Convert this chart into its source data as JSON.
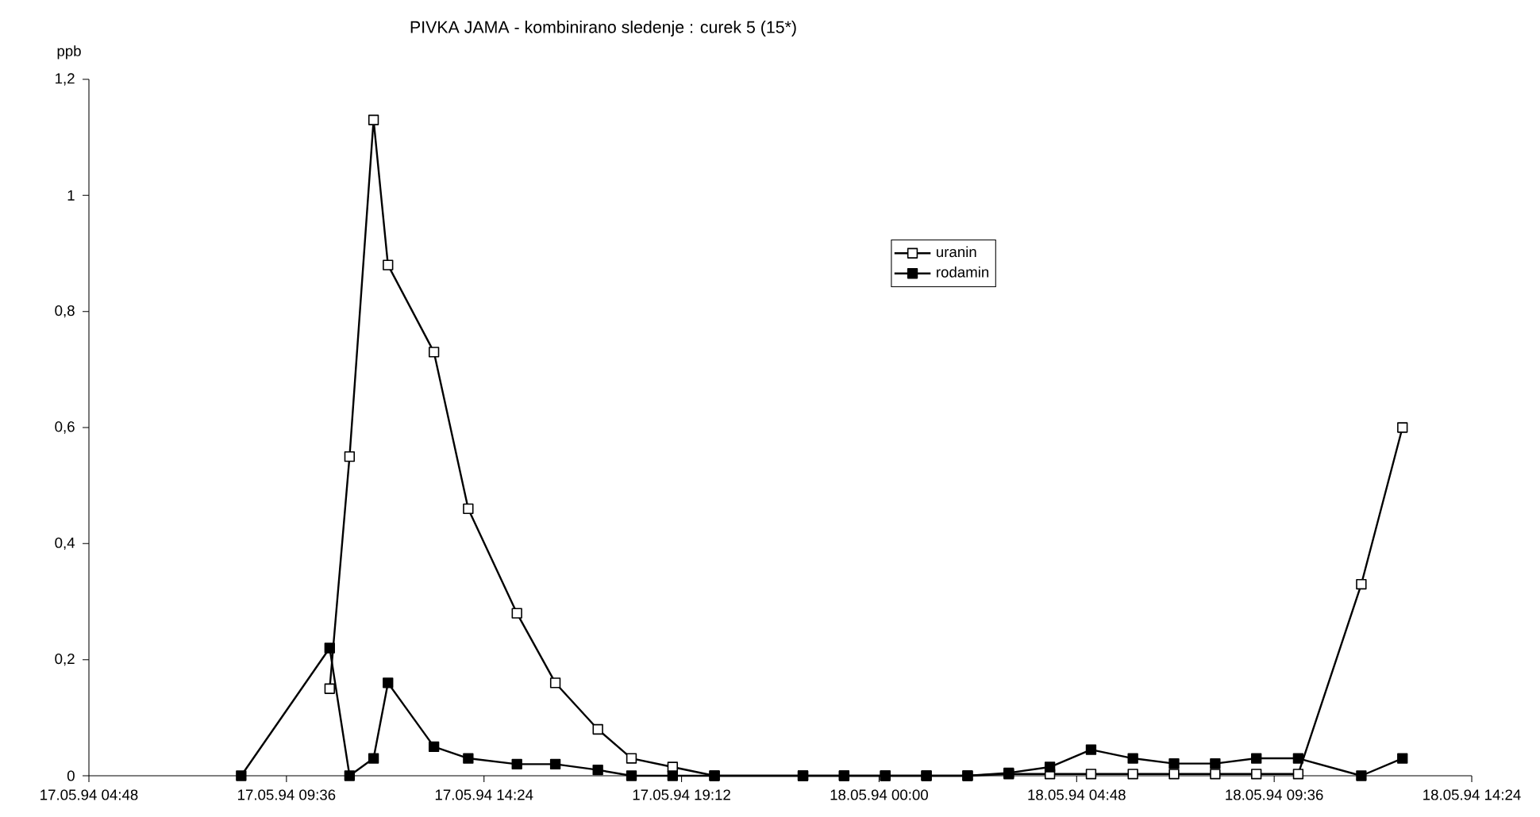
{
  "chart_data": {
    "type": "line",
    "title": "PIVKA JAMA  - kombinirano sledenje : curek  5  (15*)",
    "ylabel": "ppb",
    "xlim": [
      "1994-05-17T04:48",
      "1994-05-18T14:24"
    ],
    "xticks": [
      {
        "value": "1994-05-17T04:48",
        "label": "17.05.94 04:48"
      },
      {
        "value": "1994-05-17T09:36",
        "label": "17.05.94 09:36"
      },
      {
        "value": "1994-05-17T14:24",
        "label": "17.05.94 14:24"
      },
      {
        "value": "1994-05-17T19:12",
        "label": "17.05.94 19:12"
      },
      {
        "value": "1994-05-18T00:00",
        "label": "18.05.94 00:00"
      },
      {
        "value": "1994-05-18T04:48",
        "label": "18.05.94 04:48"
      },
      {
        "value": "1994-05-18T09:36",
        "label": "18.05.94 09:36"
      },
      {
        "value": "1994-05-18T14:24",
        "label": "18.05.94 14:24"
      }
    ],
    "ylim": [
      0,
      1.2
    ],
    "yticks": [
      0,
      {
        "value": 0.2,
        "label": "0,2"
      },
      {
        "value": 0.4,
        "label": "0,4"
      },
      {
        "value": 0.6,
        "label": "0,6"
      },
      {
        "value": 0.8,
        "label": "0,8"
      },
      1,
      {
        "value": 1.2,
        "label": "1,2"
      }
    ],
    "grid": false,
    "legend": "top",
    "marker": "square",
    "line_style": "solid",
    "series": [
      {
        "name": "uranin",
        "color": "#000000",
        "x": [
          "1994-05-17T10:39",
          "1994-05-17T11:08",
          "1994-05-17T11:43",
          "1994-05-17T12:04",
          "1994-05-17T13:11",
          "1994-05-17T14:01",
          "1994-05-17T15:12",
          "1994-05-17T16:08",
          "1994-05-17T17:10",
          "1994-05-17T17:59",
          "1994-05-17T18:59",
          "1994-05-17T20:00",
          "1994-05-17T22:09",
          "1994-05-17T23:09",
          "1994-05-18T00:09",
          "1994-05-18T01:09",
          "1994-05-18T02:09",
          "1994-05-18T03:09",
          "1994-05-18T04:09",
          "1994-05-18T05:09",
          "1994-05-18T06:10",
          "1994-05-18T07:10",
          "1994-05-18T08:10",
          "1994-05-18T09:10",
          "1994-05-18T10:11",
          "1994-05-18T11:43",
          "1994-05-18T12:43"
        ],
        "values": [
          0.15,
          0.55,
          1.13,
          0.88,
          0.73,
          0.46,
          0.28,
          0.16,
          0.08,
          0.03,
          0.015,
          0,
          0,
          0,
          0,
          0,
          0,
          0.003,
          0.003,
          0.003,
          0.003,
          0.003,
          0.003,
          0.003,
          0.003,
          0.33,
          0.6
        ]
      },
      {
        "name": "rodamin",
        "color": "#000000",
        "x": [
          "1994-05-17T08:30",
          "1994-05-17T10:39",
          "1994-05-17T11:08",
          "1994-05-17T11:43",
          "1994-05-17T12:04",
          "1994-05-17T13:11",
          "1994-05-17T14:01",
          "1994-05-17T15:12",
          "1994-05-17T16:08",
          "1994-05-17T17:10",
          "1994-05-17T17:59",
          "1994-05-17T18:59",
          "1994-05-17T20:00",
          "1994-05-17T22:09",
          "1994-05-17T23:09",
          "1994-05-18T00:09",
          "1994-05-18T01:09",
          "1994-05-18T02:09",
          "1994-05-18T03:09",
          "1994-05-18T04:09",
          "1994-05-18T05:09",
          "1994-05-18T06:10",
          "1994-05-18T07:10",
          "1994-05-18T08:10",
          "1994-05-18T09:10",
          "1994-05-18T10:11",
          "1994-05-18T11:43",
          "1994-05-18T12:43"
        ],
        "values": [
          0,
          0.22,
          0,
          0.03,
          0.16,
          0.05,
          0.03,
          0.02,
          0.02,
          0.01,
          0,
          0,
          0,
          0,
          0,
          0,
          0,
          0,
          0.005,
          0.015,
          0.045,
          0.03,
          0.021,
          0.021,
          0.03,
          0.03,
          0,
          0.03
        ]
      }
    ]
  }
}
